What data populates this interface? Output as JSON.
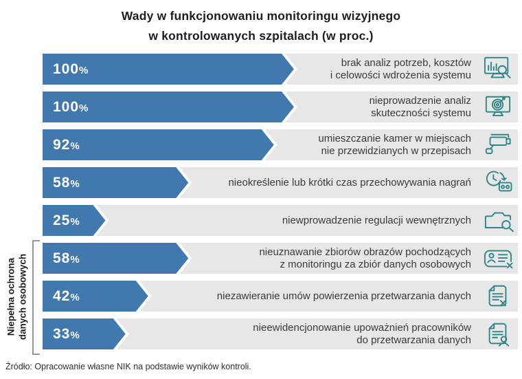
{
  "title": {
    "line1": "Wady w funkcjonowaniu monitoringu wizyjnego",
    "line2": "w kontrolowanych szpitalach (w proc.)"
  },
  "group_label": "Niepełna ochrona\ndanych osobowych",
  "source": "Źródło: Opracowanie własne NIK na podstawie wyników kontroli.",
  "colors": {
    "bar": "#4178ad",
    "track": "#e7e7e8",
    "icon": "#2e8588",
    "label_text": "#3a3a3a"
  },
  "chart_data": {
    "type": "bar",
    "orientation": "horizontal",
    "title": "Wady w funkcjonowaniu monitoringu wizyjnego w kontrolowanych szpitalach (w proc.)",
    "unit": "%",
    "xlim": [
      0,
      100
    ],
    "grid": false,
    "categories": [
      "brak analiz potrzeb, kosztów i celowości wdrożenia systemu",
      "nieprowadzenie analiz skuteczności systemu",
      "umieszczanie kamer w miejscach nie przewidzianych w przepisach",
      "nieokreślenie lub krótki czas przechowywania nagrań",
      "niewprowadzenie regulacji wewnętrznych",
      "nieuznawanie zbiorów obrazów pochodzących z monitoringu za zbiór danych osobowych",
      "niezawieranie umów powierzenia przetwarzania danych",
      "nieewidencjonowanie upoważnień pracowników do przetwarzania danych"
    ],
    "values": [
      100,
      100,
      92,
      58,
      25,
      58,
      42,
      33
    ],
    "rows": [
      {
        "value": 100,
        "value_label": "100%",
        "label": "brak analiz potrzeb, kosztów\ni celowości wdrożenia systemu",
        "icon": "monitor-chart-search",
        "group": null
      },
      {
        "value": 100,
        "value_label": "100%",
        "label": "nieprowadzenie analiz\nskuteczności systemu",
        "icon": "monitor-target",
        "group": null
      },
      {
        "value": 92,
        "value_label": "92%",
        "label": "umieszczanie kamer w miejscach\nnie przewidzianych w przepisach",
        "icon": "cctv-camera",
        "group": null
      },
      {
        "value": 58,
        "value_label": "58%",
        "label": "nieokreślenie lub krótki czas przechowywania nagrań",
        "icon": "clock-cassette",
        "group": null
      },
      {
        "value": 25,
        "value_label": "25%",
        "label": "niewprowadzenie regulacji wewnętrznych",
        "icon": "folder-search",
        "group": null
      },
      {
        "value": 58,
        "value_label": "58%",
        "label": "nieuznawanie zbiorów obrazów pochodzących\nz monitoringu za zbiór danych osobowych",
        "icon": "id-card-x",
        "group": "Niepełna ochrona danych osobowych"
      },
      {
        "value": 42,
        "value_label": "42%",
        "label": "niezawieranie umów powierzenia przetwarzania danych",
        "icon": "document-x",
        "group": "Niepełna ochrona danych osobowych"
      },
      {
        "value": 33,
        "value_label": "33%",
        "label": "nieewidencjonowanie upoważnień pracowników\ndo przetwarzania danych",
        "icon": "document-person",
        "group": "Niepełna ochrona danych osobowych"
      }
    ]
  }
}
